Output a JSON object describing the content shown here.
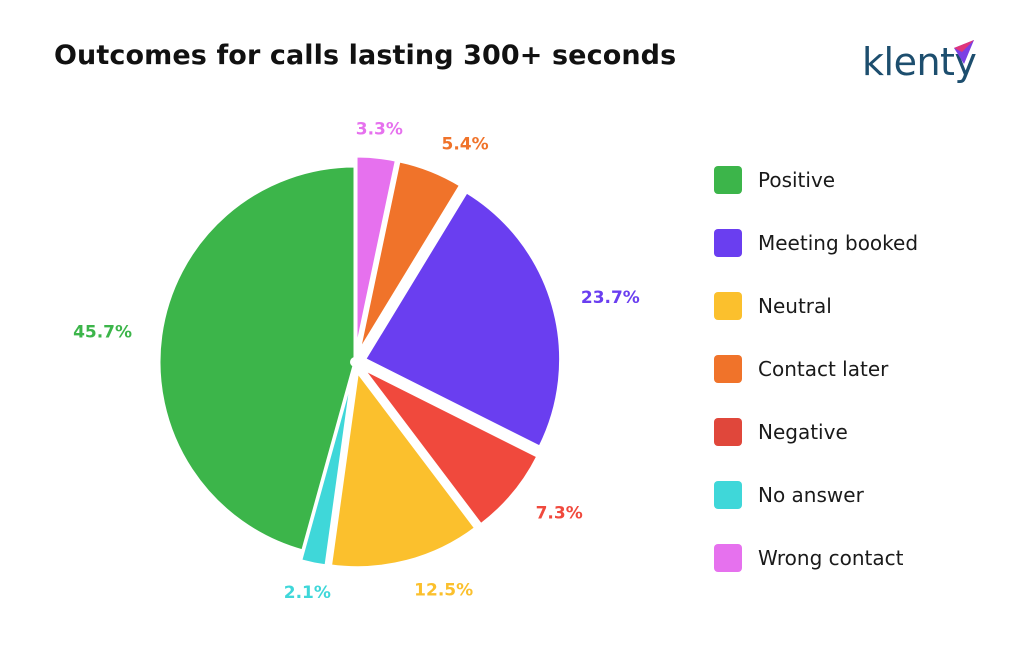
{
  "brand": {
    "name": "klenty",
    "accent_colors": [
      "#e0357a",
      "#7b3fe4"
    ]
  },
  "chart_data": {
    "type": "pie",
    "title": "Outcomes for calls lasting 300+ seconds",
    "legend_position": "right",
    "slices": [
      {
        "name": "Wrong contact",
        "value": 3.3,
        "label": "3.3%",
        "color": "#e671ee",
        "exploded": true
      },
      {
        "name": "Contact later",
        "value": 5.4,
        "label": "5.4%",
        "color": "#f0732a",
        "exploded": true
      },
      {
        "name": "Meeting booked",
        "value": 23.7,
        "label": "23.7%",
        "color": "#6a3ef0",
        "exploded": true
      },
      {
        "name": "Negative",
        "value": 7.3,
        "label": "7.3%",
        "color": "#f0493d",
        "exploded": true
      },
      {
        "name": "Neutral",
        "value": 12.5,
        "label": "12.5%",
        "color": "#fbc02d",
        "exploded": true
      },
      {
        "name": "No answer",
        "value": 2.1,
        "label": "2.1%",
        "color": "#3fd7d9",
        "exploded": true
      },
      {
        "name": "Positive",
        "value": 45.7,
        "label": "45.7%",
        "color": "#3cb54a",
        "exploded": false
      }
    ],
    "legend": [
      {
        "name": "Positive",
        "color": "#3cb54a"
      },
      {
        "name": "Meeting booked",
        "color": "#6a3ef0"
      },
      {
        "name": "Neutral",
        "color": "#fbc02d"
      },
      {
        "name": "Contact later",
        "color": "#f0732a"
      },
      {
        "name": "Negative",
        "color": "#e0473b"
      },
      {
        "name": "No answer",
        "color": "#3fd7d9"
      },
      {
        "name": "Wrong contact",
        "color": "#e671ee"
      }
    ]
  }
}
